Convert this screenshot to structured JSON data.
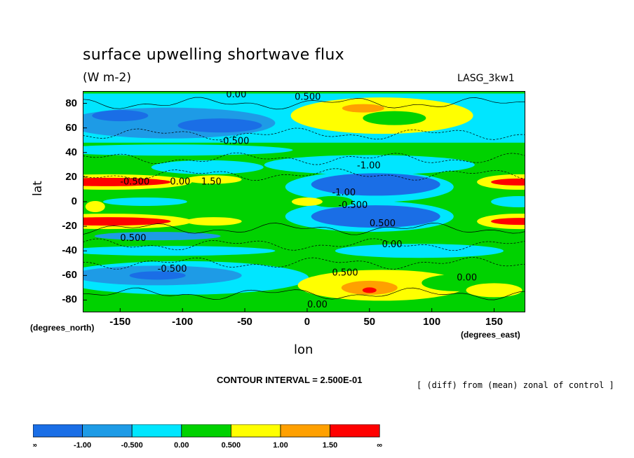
{
  "header": {
    "title": "surface upwelling shortwave flux",
    "units": "(W m-2)",
    "run_id": "LASG_3kw1"
  },
  "axes": {
    "ylabel": "lat",
    "xlabel": "lon",
    "y_units": "(degrees_north)",
    "x_units": "(degrees_east)"
  },
  "footer": {
    "contour_interval": "CONTOUR INTERVAL = 2.500E-01",
    "note": "[ (diff) from (mean) zonal of control ]"
  },
  "chart_data": {
    "type": "heatmap",
    "title": "surface upwelling shortwave flux",
    "xlabel": "lon",
    "ylabel": "lat",
    "xlim": [
      -180,
      175
    ],
    "ylim": [
      -90,
      90
    ],
    "x_ticks": [
      -150,
      -100,
      -50,
      0,
      50,
      100,
      150
    ],
    "x_tick_labels": [
      "-150",
      "-100",
      "-50",
      "0",
      "50",
      "100",
      "150"
    ],
    "y_ticks": [
      80,
      60,
      40,
      20,
      0,
      -20,
      -40,
      -60,
      -80
    ],
    "y_tick_labels": [
      "80",
      "60",
      "40",
      "20",
      "0",
      "-20",
      "-40",
      "-60",
      "-80"
    ],
    "contour_levels": [
      -1.0,
      -0.5,
      0.0,
      0.5,
      1.0,
      1.5
    ],
    "colorbar": {
      "labels": [
        "-∞",
        "-1.00",
        "-0.500",
        "0.00",
        "0.500",
        "1.00",
        "1.50",
        "∞"
      ],
      "colors": [
        "#1a6ee6",
        "#1e9be6",
        "#00e6ff",
        "#00d200",
        "#ffff00",
        "#ffa000",
        "#ff0000"
      ]
    },
    "regions": [
      {
        "name": "tropical-pacific-neg",
        "lon": 50,
        "lat": 0,
        "value": -1.0
      },
      {
        "name": "n-subtropic-pos-west",
        "lon": -150,
        "lat": 16,
        "value": 1.6
      },
      {
        "name": "s-subtropic-pos-west",
        "lon": -150,
        "lat": -16,
        "value": 1.6
      },
      {
        "name": "n-subtropic-pos-east",
        "lon": 165,
        "lat": 16,
        "value": 1.5
      },
      {
        "name": "s-subtropic-pos-east",
        "lon": 165,
        "lat": -16,
        "value": 1.5
      },
      {
        "name": "arctic-pos",
        "lon": 60,
        "lat": 70,
        "value": 0.8
      },
      {
        "name": "antarctic-pos",
        "lon": 50,
        "lat": -70,
        "value": 1.2
      },
      {
        "name": "n-mid-lat-neg",
        "lon": -120,
        "lat": 65,
        "value": -0.6
      },
      {
        "name": "s-mid-lat-neg",
        "lon": -120,
        "lat": -60,
        "value": -0.6
      }
    ],
    "contour_labels": [
      "0.00",
      "0.500",
      "-0.500",
      "-1.00",
      "1.50",
      "0.00",
      "-0.500",
      "0.500",
      "-1.00",
      "-0.500",
      "0.500",
      "0.00",
      "-0.500",
      "0.00",
      "0.500",
      "0.00"
    ]
  }
}
